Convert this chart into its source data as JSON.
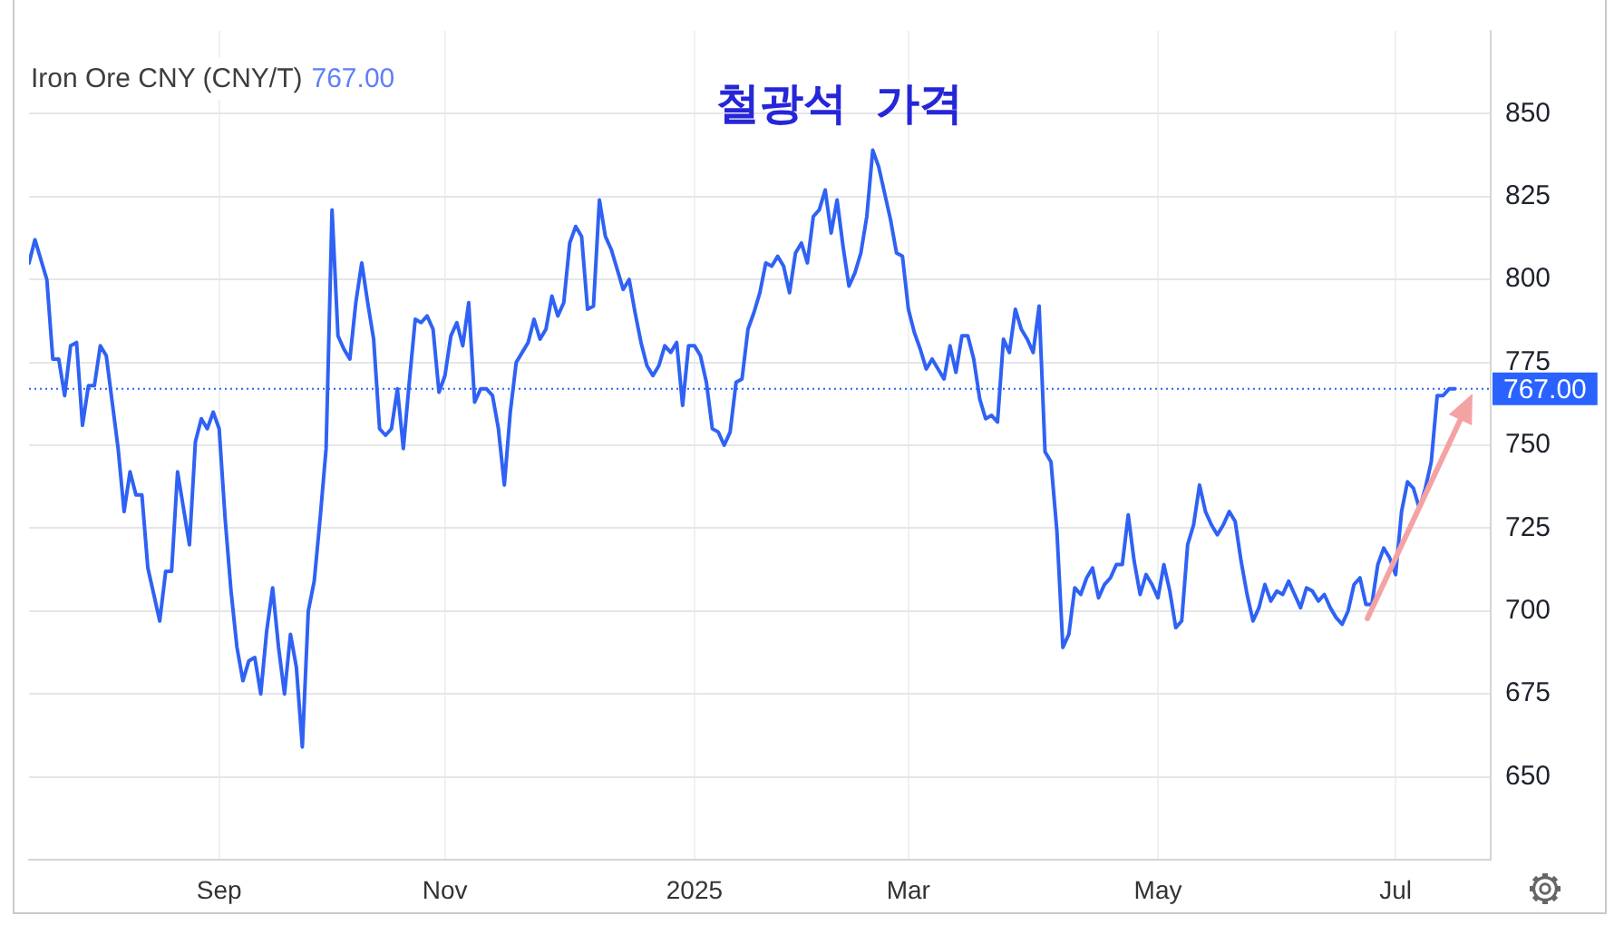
{
  "chart_data": {
    "type": "line",
    "title": "철광석 가격",
    "subtitle": "Iron Ore CNY (CNY/T)",
    "annotations": [
      "767.00"
    ],
    "categories": [
      null,
      null,
      null,
      null,
      null,
      null,
      null,
      null,
      null,
      null,
      null,
      null,
      null,
      null,
      null,
      null,
      null,
      null,
      null,
      null,
      null,
      null,
      null,
      null,
      null,
      null,
      null,
      null,
      null,
      null,
      null,
      null,
      "Sep",
      null,
      null,
      null,
      null,
      null,
      null,
      null,
      null,
      null,
      null,
      null,
      null,
      null,
      null,
      null,
      null,
      null,
      null,
      null,
      null,
      null,
      null,
      null,
      null,
      null,
      null,
      null,
      null,
      null,
      null,
      null,
      null,
      null,
      null,
      null,
      null,
      null,
      "Nov",
      null,
      null,
      null,
      null,
      null,
      null,
      null,
      null,
      null,
      null,
      null,
      null,
      null,
      null,
      null,
      null,
      null,
      null,
      null,
      null,
      null,
      null,
      null,
      null,
      null,
      null,
      null,
      null,
      null,
      null,
      null,
      null,
      null,
      null,
      null,
      null,
      null,
      null,
      null,
      null,
      null,
      "2025",
      null,
      null,
      null,
      null,
      null,
      null,
      null,
      null,
      null,
      null,
      null,
      null,
      null,
      null,
      null,
      null,
      null,
      null,
      null,
      null,
      null,
      null,
      null,
      null,
      null,
      null,
      null,
      null,
      null,
      null,
      null,
      null,
      null,
      null,
      null,
      "Mar",
      null,
      null,
      null,
      null,
      null,
      null,
      null,
      null,
      null,
      null,
      null,
      null,
      null,
      null,
      null,
      null,
      null,
      null,
      null,
      null,
      null,
      null,
      null,
      null,
      null,
      null,
      null,
      null,
      null,
      null,
      null,
      null,
      null,
      null,
      null,
      null,
      null,
      null,
      null,
      null,
      null,
      "May",
      null,
      null,
      null,
      null,
      null,
      null,
      null,
      null,
      null,
      null,
      null,
      null,
      null,
      null,
      null,
      null,
      null,
      null,
      null,
      null,
      null,
      null,
      null,
      null,
      null,
      null,
      null,
      null,
      null,
      null,
      null,
      null,
      null,
      null,
      null,
      null,
      null,
      null,
      null,
      "Jul",
      null,
      null,
      null,
      null,
      null,
      null,
      null,
      null,
      null,
      null
    ],
    "series": [
      {
        "color": "#2f62f4",
        "values": [
          805,
          812,
          806,
          800,
          776,
          776,
          765,
          780,
          781,
          756,
          768,
          768,
          780,
          777,
          763,
          749,
          730,
          742,
          735,
          735,
          713,
          705,
          697,
          712,
          712,
          742,
          731,
          720,
          751,
          758,
          755,
          760,
          755,
          728,
          706,
          689,
          679,
          685,
          686,
          675,
          694,
          707,
          689,
          675,
          693,
          683,
          659,
          700,
          709,
          728,
          749,
          821,
          783,
          779,
          776,
          793,
          805,
          793,
          782,
          755,
          753,
          755,
          767,
          749,
          769,
          788,
          787,
          789,
          785,
          766,
          771,
          783,
          787,
          780,
          793,
          763,
          767,
          767,
          765,
          755,
          738,
          760,
          775,
          778,
          781,
          788,
          782,
          785,
          795,
          789,
          793,
          811,
          816,
          813,
          791,
          792,
          824,
          813,
          809,
          803,
          797,
          800,
          790,
          781,
          774,
          771,
          774,
          780,
          778,
          781,
          762,
          780,
          780,
          777,
          769,
          755,
          754,
          750,
          754,
          769,
          770,
          785,
          790,
          796,
          805,
          804,
          807,
          804,
          796,
          808,
          811,
          805,
          819,
          821,
          827,
          814,
          824,
          810,
          798,
          802,
          808,
          819,
          839,
          834,
          826,
          818,
          808,
          807,
          791,
          784,
          779,
          773,
          776,
          773,
          770,
          780,
          772,
          783,
          783,
          776,
          764,
          758,
          759,
          757,
          782,
          778,
          791,
          785,
          782,
          778,
          792,
          748,
          745,
          724,
          689,
          693,
          707,
          705,
          710,
          713,
          704,
          708,
          710,
          714,
          714,
          729,
          715,
          705,
          711,
          708,
          704,
          714,
          706,
          695,
          697,
          720,
          726,
          738,
          730,
          726,
          723,
          726,
          730,
          727,
          715,
          705,
          697,
          701,
          708,
          703,
          706,
          705,
          709,
          705,
          701,
          707,
          706,
          703,
          705,
          701,
          698,
          696,
          700,
          708,
          710,
          702,
          702,
          714,
          719,
          716,
          711,
          730,
          739,
          737,
          731,
          737,
          745,
          765,
          765,
          767,
          767
        ]
      }
    ],
    "ylim": [
      625,
      875
    ],
    "yticks": [
      650,
      675,
      700,
      725,
      750,
      775,
      800,
      825,
      850
    ],
    "grid": true,
    "ref_lines": [
      {
        "axis": "y",
        "value": 767,
        "label": "767.00",
        "color": "#2962ff",
        "line_style": "dotted"
      }
    ]
  }
}
